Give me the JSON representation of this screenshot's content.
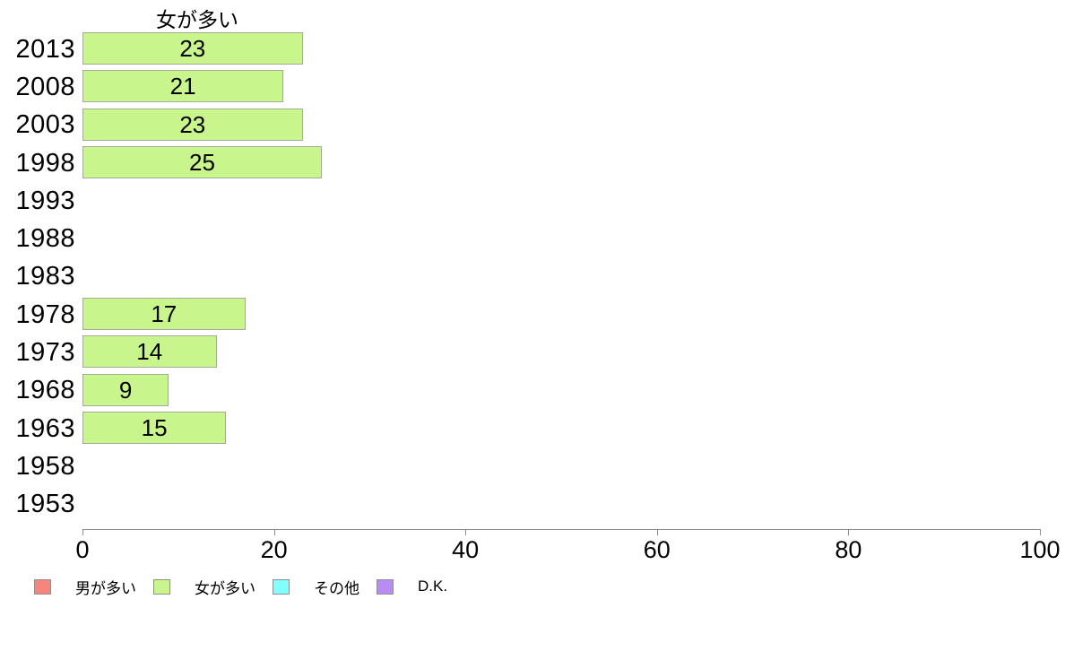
{
  "chart_data": {
    "type": "bar",
    "orientation": "horizontal",
    "title": "女が多い",
    "categories": [
      "2013",
      "2008",
      "2003",
      "1998",
      "1993",
      "1988",
      "1983",
      "1978",
      "1973",
      "1968",
      "1963",
      "1958",
      "1953"
    ],
    "values": [
      23,
      21,
      23,
      25,
      null,
      null,
      null,
      17,
      14,
      9,
      15,
      null,
      null
    ],
    "xlabel": "",
    "ylabel": "",
    "xlim": [
      0,
      100
    ],
    "x_ticks": [
      0,
      20,
      40,
      60,
      80,
      100
    ],
    "grid": false,
    "bar_color": "#c9f68c",
    "bar_border_color": "#a5aa9d",
    "legend_position": "bottom-left",
    "legend": [
      {
        "label": "男が多い",
        "color": "#f8847e"
      },
      {
        "label": "女が多い",
        "color": "#c9f68c"
      },
      {
        "label": "その他",
        "color": "#82ffff"
      },
      {
        "label": "D.K.",
        "color": "#b88cf2"
      }
    ]
  }
}
